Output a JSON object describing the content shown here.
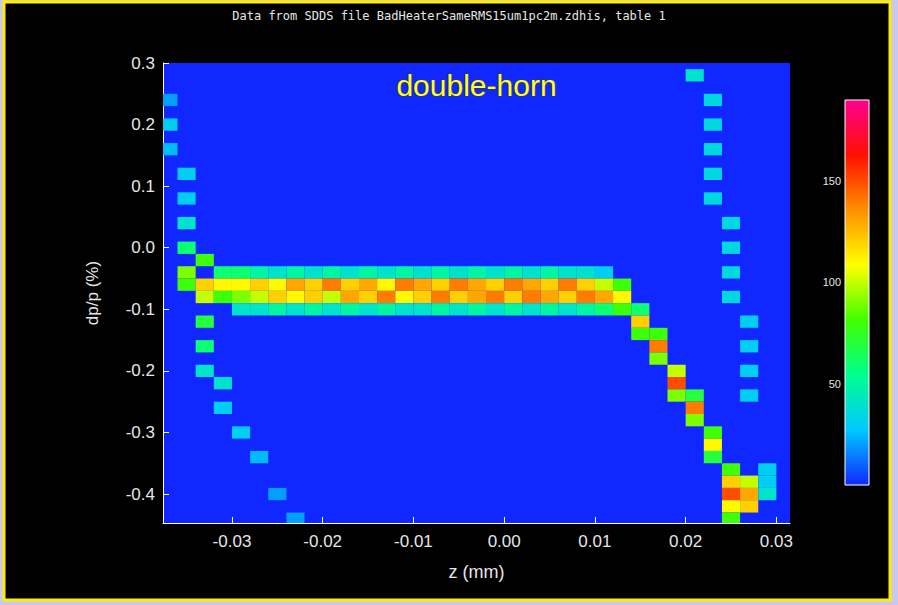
{
  "chart_data": {
    "type": "heatmap",
    "title": "Data from SDDS file BadHeaterSameRMS15um1pc2m.zdhis, table 1",
    "annotation": "double-horn",
    "x_label": "z (mm)",
    "y_label": "dp/p (%)",
    "xlim": [
      -0.0376,
      0.0315
    ],
    "ylim": [
      -0.447,
      0.3
    ],
    "xticks": [
      -0.03,
      -0.02,
      -0.01,
      {
        "value": 0,
        "label": "0.00"
      },
      0.01,
      0.02,
      0.03
    ],
    "yticks": [
      -0.4,
      -0.3,
      -0.2,
      -0.1,
      {
        "value": 0,
        "label": "0.0"
      },
      0.1,
      0.2,
      0.3
    ],
    "grid": false,
    "cell_size": [
      0.002,
      0.02
    ],
    "cells": [
      [
        -0.037,
        0.24,
        20
      ],
      [
        -0.037,
        0.2,
        30
      ],
      [
        -0.037,
        0.16,
        25
      ],
      [
        -0.035,
        0.12,
        30
      ],
      [
        -0.035,
        0.08,
        30
      ],
      [
        -0.035,
        0.04,
        40
      ],
      [
        -0.035,
        0.0,
        60
      ],
      [
        -0.035,
        -0.04,
        90
      ],
      [
        -0.035,
        -0.06,
        80
      ],
      [
        -0.033,
        -0.02,
        80
      ],
      [
        -0.033,
        -0.06,
        120
      ],
      [
        -0.033,
        -0.08,
        100
      ],
      [
        -0.033,
        -0.12,
        70
      ],
      [
        -0.033,
        -0.16,
        60
      ],
      [
        -0.033,
        -0.2,
        40
      ],
      [
        -0.031,
        -0.04,
        60
      ],
      [
        -0.031,
        -0.06,
        110
      ],
      [
        -0.031,
        -0.08,
        80
      ],
      [
        -0.031,
        -0.22,
        40
      ],
      [
        -0.031,
        -0.26,
        30
      ],
      [
        -0.029,
        -0.3,
        30
      ],
      [
        -0.027,
        -0.34,
        25
      ],
      [
        -0.025,
        -0.4,
        20
      ],
      [
        -0.023,
        -0.44,
        20
      ],
      [
        -0.029,
        -0.04,
        60
      ],
      [
        -0.029,
        -0.06,
        110
      ],
      [
        -0.029,
        -0.08,
        90
      ],
      [
        -0.029,
        -0.1,
        40
      ],
      [
        -0.027,
        -0.04,
        50
      ],
      [
        -0.027,
        -0.06,
        120
      ],
      [
        -0.027,
        -0.08,
        100
      ],
      [
        -0.027,
        -0.1,
        40
      ],
      [
        -0.025,
        -0.04,
        40
      ],
      [
        -0.025,
        -0.06,
        110
      ],
      [
        -0.025,
        -0.08,
        120
      ],
      [
        -0.025,
        -0.1,
        50
      ],
      [
        -0.023,
        -0.04,
        50
      ],
      [
        -0.023,
        -0.06,
        130
      ],
      [
        -0.023,
        -0.08,
        110
      ],
      [
        -0.023,
        -0.1,
        40
      ],
      [
        -0.021,
        -0.04,
        40
      ],
      [
        -0.021,
        -0.06,
        120
      ],
      [
        -0.021,
        -0.08,
        120
      ],
      [
        -0.021,
        -0.1,
        50
      ],
      [
        -0.019,
        -0.04,
        50
      ],
      [
        -0.019,
        -0.06,
        140
      ],
      [
        -0.019,
        -0.08,
        100
      ],
      [
        -0.019,
        -0.1,
        40
      ],
      [
        -0.017,
        -0.04,
        40
      ],
      [
        -0.017,
        -0.06,
        120
      ],
      [
        -0.017,
        -0.08,
        130
      ],
      [
        -0.017,
        -0.1,
        50
      ],
      [
        -0.015,
        -0.04,
        50
      ],
      [
        -0.015,
        -0.06,
        130
      ],
      [
        -0.015,
        -0.08,
        120
      ],
      [
        -0.015,
        -0.1,
        40
      ],
      [
        -0.013,
        -0.04,
        40
      ],
      [
        -0.013,
        -0.06,
        110
      ],
      [
        -0.013,
        -0.08,
        140
      ],
      [
        -0.013,
        -0.1,
        50
      ],
      [
        -0.011,
        -0.04,
        50
      ],
      [
        -0.011,
        -0.06,
        140
      ],
      [
        -0.011,
        -0.08,
        110
      ],
      [
        -0.011,
        -0.1,
        40
      ],
      [
        -0.009,
        -0.04,
        40
      ],
      [
        -0.009,
        -0.06,
        130
      ],
      [
        -0.009,
        -0.08,
        120
      ],
      [
        -0.009,
        -0.1,
        40
      ],
      [
        -0.007,
        -0.04,
        50
      ],
      [
        -0.007,
        -0.06,
        120
      ],
      [
        -0.007,
        -0.08,
        140
      ],
      [
        -0.007,
        -0.1,
        50
      ],
      [
        -0.005,
        -0.04,
        40
      ],
      [
        -0.005,
        -0.06,
        140
      ],
      [
        -0.005,
        -0.08,
        120
      ],
      [
        -0.005,
        -0.1,
        40
      ],
      [
        -0.003,
        -0.04,
        50
      ],
      [
        -0.003,
        -0.06,
        130
      ],
      [
        -0.003,
        -0.08,
        130
      ],
      [
        -0.003,
        -0.1,
        50
      ],
      [
        -0.001,
        -0.04,
        40
      ],
      [
        -0.001,
        -0.06,
        120
      ],
      [
        -0.001,
        -0.08,
        140
      ],
      [
        -0.001,
        -0.1,
        40
      ],
      [
        0.001,
        -0.04,
        50
      ],
      [
        0.001,
        -0.06,
        140
      ],
      [
        0.001,
        -0.08,
        120
      ],
      [
        0.001,
        -0.1,
        50
      ],
      [
        0.003,
        -0.04,
        40
      ],
      [
        0.003,
        -0.06,
        130
      ],
      [
        0.003,
        -0.08,
        140
      ],
      [
        0.003,
        -0.1,
        40
      ],
      [
        0.005,
        -0.04,
        50
      ],
      [
        0.005,
        -0.06,
        120
      ],
      [
        0.005,
        -0.08,
        130
      ],
      [
        0.005,
        -0.1,
        50
      ],
      [
        0.007,
        -0.04,
        40
      ],
      [
        0.007,
        -0.06,
        140
      ],
      [
        0.007,
        -0.08,
        120
      ],
      [
        0.007,
        -0.1,
        40
      ],
      [
        0.009,
        -0.04,
        40
      ],
      [
        0.009,
        -0.06,
        120
      ],
      [
        0.009,
        -0.08,
        140
      ],
      [
        0.009,
        -0.1,
        50
      ],
      [
        0.011,
        -0.04,
        30
      ],
      [
        0.011,
        -0.06,
        100
      ],
      [
        0.011,
        -0.08,
        130
      ],
      [
        0.011,
        -0.1,
        60
      ],
      [
        0.013,
        -0.06,
        80
      ],
      [
        0.013,
        -0.08,
        110
      ],
      [
        0.013,
        -0.1,
        80
      ],
      [
        0.015,
        -0.1,
        60
      ],
      [
        0.015,
        -0.12,
        120
      ],
      [
        0.015,
        -0.14,
        80
      ],
      [
        0.017,
        -0.14,
        80
      ],
      [
        0.017,
        -0.16,
        140
      ],
      [
        0.017,
        -0.18,
        90
      ],
      [
        0.019,
        -0.2,
        100
      ],
      [
        0.019,
        -0.22,
        150
      ],
      [
        0.019,
        -0.24,
        90
      ],
      [
        0.021,
        -0.24,
        70
      ],
      [
        0.021,
        -0.26,
        140
      ],
      [
        0.021,
        -0.28,
        90
      ],
      [
        0.023,
        -0.3,
        80
      ],
      [
        0.023,
        -0.32,
        110
      ],
      [
        0.023,
        -0.34,
        70
      ],
      [
        0.025,
        -0.36,
        80
      ],
      [
        0.025,
        -0.38,
        120
      ],
      [
        0.025,
        -0.4,
        150
      ],
      [
        0.025,
        -0.42,
        110
      ],
      [
        0.025,
        -0.44,
        80
      ],
      [
        0.027,
        -0.38,
        100
      ],
      [
        0.027,
        -0.4,
        130
      ],
      [
        0.027,
        -0.42,
        120
      ],
      [
        0.029,
        -0.36,
        30
      ],
      [
        0.029,
        -0.38,
        30
      ],
      [
        0.029,
        -0.4,
        40
      ],
      [
        0.021,
        0.28,
        40
      ],
      [
        0.023,
        0.24,
        35
      ],
      [
        0.023,
        0.2,
        35
      ],
      [
        0.023,
        0.16,
        35
      ],
      [
        0.023,
        0.12,
        35
      ],
      [
        0.023,
        0.08,
        35
      ],
      [
        0.025,
        0.04,
        35
      ],
      [
        0.025,
        0.0,
        35
      ],
      [
        0.025,
        -0.04,
        35
      ],
      [
        0.025,
        -0.08,
        35
      ],
      [
        0.027,
        -0.12,
        30
      ],
      [
        0.027,
        -0.16,
        30
      ],
      [
        0.027,
        -0.2,
        30
      ],
      [
        0.027,
        -0.24,
        30
      ]
    ],
    "colorbar": {
      "range": [
        0,
        190
      ],
      "ticks": [
        50,
        100,
        150
      ]
    }
  }
}
